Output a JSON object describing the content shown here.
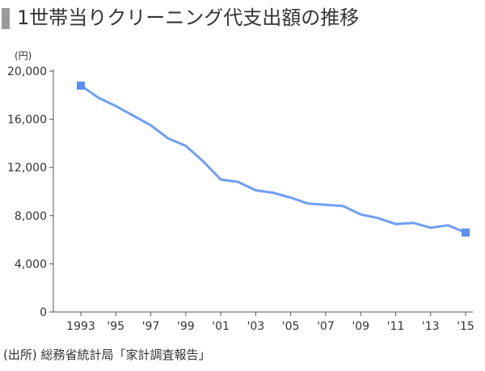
{
  "title": "1世帯当りクリーニング代支出額の推移",
  "source": "(出所) 総務省統計局「家計調査報告」",
  "colors": {
    "line": "#6f9ff2",
    "marker": "#5b8ff0",
    "axis": "#555555",
    "title_bar": "#9a9a9a"
  },
  "chart_data": {
    "type": "line",
    "title": "1世帯当りクリーニング代支出額の推移",
    "unit_label": "(円)",
    "ylim": [
      0,
      20000
    ],
    "y_ticks": [
      0,
      4000,
      8000,
      12000,
      16000,
      20000
    ],
    "y_tick_labels": [
      "0",
      "4,000",
      "8,000",
      "12,000",
      "16,000",
      "20,000"
    ],
    "xlim": [
      1993,
      2015
    ],
    "x_ticks": [
      1993,
      1995,
      1997,
      1999,
      2001,
      2003,
      2005,
      2007,
      2009,
      2011,
      2013,
      2015
    ],
    "x_tick_labels": [
      "1993",
      "'95",
      "'97",
      "'99",
      "'01",
      "'03",
      "'05",
      "'07",
      "'09",
      "'11",
      "'13",
      "'15"
    ],
    "grid": false,
    "marker_style": "square markers on first and last points",
    "series": [
      {
        "x": [
          1993,
          1994,
          1995,
          1996,
          1997,
          1998,
          1999,
          2000,
          2001,
          2002,
          2003,
          2004,
          2005,
          2006,
          2007,
          2008,
          2009,
          2010,
          2011,
          2012,
          2013,
          2014,
          2015
        ],
        "values": [
          18800,
          17800,
          17100,
          16300,
          15500,
          14400,
          13800,
          12500,
          11000,
          10800,
          10100,
          9900,
          9500,
          9000,
          8900,
          8800,
          8100,
          7800,
          7300,
          7400,
          7000,
          7200,
          6600
        ]
      }
    ]
  }
}
